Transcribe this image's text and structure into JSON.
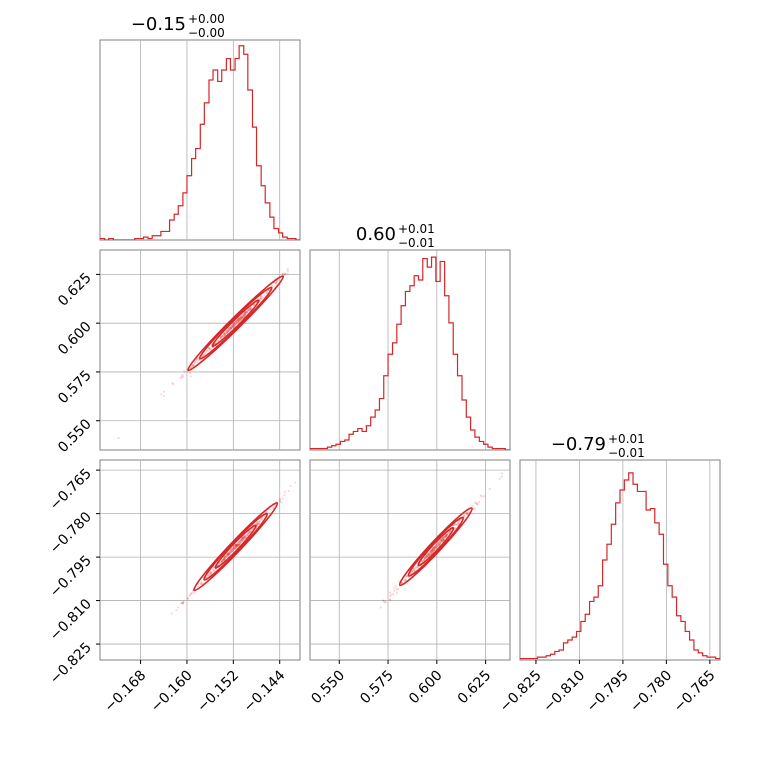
{
  "chart_data": {
    "type": "corner",
    "color": "#d62728",
    "panels": [
      {
        "id": "p00",
        "kind": "histogram",
        "row": 0,
        "col": 0,
        "title": {
          "main": "−0.15",
          "sup": "+0.00",
          "sub": "−0.00"
        },
        "xlim": [
          -0.175,
          -0.1405
        ],
        "bins": [
          -0.175,
          -0.1742,
          -0.1735,
          -0.1727,
          -0.172,
          -0.1712,
          -0.1705,
          -0.1697,
          -0.169,
          -0.1682,
          -0.1675,
          -0.1667,
          -0.166,
          -0.1652,
          -0.1645,
          -0.1637,
          -0.163,
          -0.1622,
          -0.1615,
          -0.1607,
          -0.16,
          -0.1592,
          -0.1585,
          -0.1577,
          -0.157,
          -0.1562,
          -0.1555,
          -0.1547,
          -0.154,
          -0.1532,
          -0.1525,
          -0.1517,
          -0.151,
          -0.1502,
          -0.1495,
          -0.1487,
          -0.148,
          -0.1472,
          -0.1465,
          -0.1457,
          -0.145,
          -0.1442,
          -0.1435,
          -0.1427,
          -0.142,
          -0.1412,
          -0.1405
        ],
        "counts": [
          1,
          0,
          1,
          0,
          0,
          0,
          0,
          0,
          1,
          1,
          2,
          1,
          3,
          3,
          6,
          6,
          14,
          18,
          24,
          33,
          45,
          57,
          64,
          81,
          96,
          112,
          119,
          111,
          119,
          127,
          119,
          127,
          136,
          130,
          105,
          79,
          52,
          38,
          26,
          16,
          8,
          5,
          2,
          1,
          1,
          0
        ],
        "ylim": [
          0,
          140
        ],
        "xgrid": [
          -0.168,
          -0.16,
          -0.152,
          -0.144
        ]
      },
      {
        "id": "p11",
        "kind": "histogram",
        "row": 1,
        "col": 1,
        "title": {
          "main": "0.60",
          "sup": "+0.01",
          "sub": "−0.01"
        },
        "xlim": [
          0.535,
          0.6375
        ],
        "bins": [
          0.535,
          0.5372,
          0.5394,
          0.5417,
          0.5439,
          0.5461,
          0.5483,
          0.5506,
          0.5528,
          0.555,
          0.5572,
          0.5595,
          0.5617,
          0.5639,
          0.5661,
          0.5684,
          0.5706,
          0.5728,
          0.575,
          0.5773,
          0.5795,
          0.5817,
          0.5839,
          0.5862,
          0.5884,
          0.5906,
          0.5928,
          0.5951,
          0.5973,
          0.5995,
          0.6017,
          0.604,
          0.6062,
          0.6084,
          0.6106,
          0.6129,
          0.6151,
          0.6173,
          0.6195,
          0.6218,
          0.624,
          0.6262,
          0.6284,
          0.6307,
          0.6329,
          0.6351,
          0.6375
        ],
        "counts": [
          1,
          1,
          1,
          1,
          2,
          3,
          4,
          6,
          7,
          11,
          13,
          15,
          13,
          17,
          23,
          28,
          36,
          52,
          67,
          75,
          88,
          101,
          111,
          115,
          122,
          119,
          134,
          128,
          135,
          118,
          132,
          108,
          89,
          67,
          52,
          35,
          23,
          14,
          9,
          6,
          4,
          2,
          1,
          1,
          1,
          0
        ],
        "ylim": [
          0,
          140
        ],
        "xgrid": [
          0.55,
          0.575,
          0.6,
          0.625
        ]
      },
      {
        "id": "p22",
        "kind": "histogram",
        "row": 2,
        "col": 2,
        "title": {
          "main": "−0.79",
          "sup": "+0.01",
          "sub": "−0.01"
        },
        "xlim": [
          -0.8305,
          -0.7615
        ],
        "bins": [
          -0.8305,
          -0.829,
          -0.8275,
          -0.826,
          -0.8245,
          -0.823,
          -0.8215,
          -0.82,
          -0.8185,
          -0.817,
          -0.8155,
          -0.814,
          -0.8125,
          -0.811,
          -0.8095,
          -0.808,
          -0.8065,
          -0.805,
          -0.8035,
          -0.802,
          -0.8005,
          -0.799,
          -0.7975,
          -0.796,
          -0.7945,
          -0.793,
          -0.7915,
          -0.79,
          -0.7885,
          -0.787,
          -0.7855,
          -0.784,
          -0.7825,
          -0.781,
          -0.7795,
          -0.778,
          -0.7765,
          -0.775,
          -0.7735,
          -0.772,
          -0.7705,
          -0.769,
          -0.7675,
          -0.766,
          -0.7645,
          -0.763,
          -0.7615
        ],
        "counts": [
          1,
          1,
          1,
          1,
          2,
          2,
          3,
          4,
          6,
          7,
          12,
          14,
          16,
          20,
          27,
          32,
          41,
          44,
          52,
          70,
          81,
          95,
          110,
          119,
          126,
          131,
          123,
          118,
          118,
          105,
          106,
          96,
          88,
          67,
          52,
          44,
          31,
          27,
          20,
          14,
          7,
          5,
          3,
          2,
          2,
          1
        ],
        "ylim": [
          0,
          140
        ],
        "xgrid": [
          -0.825,
          -0.81,
          -0.795,
          -0.78,
          -0.765
        ]
      },
      {
        "id": "p10",
        "kind": "scatter",
        "row": 1,
        "col": 0,
        "xlim": [
          -0.175,
          -0.1405
        ],
        "ylim": [
          0.535,
          0.6375
        ],
        "xgrid": [
          -0.168,
          -0.16,
          -0.152,
          -0.144
        ],
        "ygrid": [
          0.55,
          0.575,
          0.6,
          0.625
        ],
        "line_intercept": 0.6005,
        "line_slope": 2.94,
        "center": [
          -0.1516,
          0.6
        ],
        "contour_sigma_par": [
          0.004,
          0.0085
        ],
        "contour_sigma_perp": 0.0006,
        "axis_ticks_y": [
          "0.550",
          "0.575",
          "0.600",
          "0.625"
        ]
      },
      {
        "id": "p20",
        "kind": "scatter",
        "row": 2,
        "col": 0,
        "xlim": [
          -0.175,
          -0.1405
        ],
        "ylim": [
          -0.8305,
          -0.7615
        ],
        "xgrid": [
          -0.168,
          -0.16,
          -0.152,
          -0.144
        ],
        "ygrid": [
          -0.825,
          -0.81,
          -0.795,
          -0.78,
          -0.765
        ],
        "line_intercept": -0.7914,
        "line_slope": 2.1,
        "center": [
          -0.1516,
          -0.7914
        ],
        "contour_sigma_par": [
          0.0035,
          0.008
        ],
        "contour_sigma_perp": 0.0005,
        "axis_ticks_y": [
          "−0.825",
          "−0.810",
          "−0.795",
          "−0.780",
          "−0.765"
        ],
        "axis_ticks_x": [
          "−0.168",
          "−0.160",
          "−0.152",
          "−0.144"
        ]
      },
      {
        "id": "p21",
        "kind": "scatter",
        "row": 2,
        "col": 1,
        "xlim": [
          0.535,
          0.6375
        ],
        "ylim": [
          -0.8305,
          -0.7615
        ],
        "xgrid": [
          0.55,
          0.575,
          0.6,
          0.625
        ],
        "ygrid": [
          -0.825,
          -0.81,
          -0.795,
          -0.78,
          -0.765
        ],
        "line_intercept": -0.7914,
        "line_slope": 0.72,
        "center": [
          0.5995,
          -0.7914
        ],
        "contour_sigma_par": [
          0.009,
          0.025
        ],
        "contour_sigma_perp": 0.0006,
        "axis_ticks_x": [
          "0.550",
          "0.575",
          "0.600",
          "0.625"
        ]
      }
    ],
    "axis_ticks_x_col2": [
      "−0.825",
      "−0.810",
      "−0.795",
      "−0.780",
      "−0.765"
    ]
  }
}
